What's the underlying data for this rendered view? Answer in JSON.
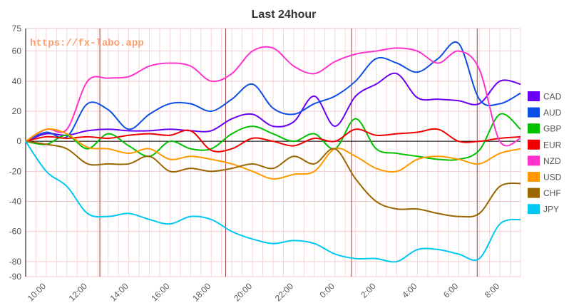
{
  "chart_data": {
    "type": "line",
    "title": "Last 24hour",
    "watermark": "https://fx-labo.app",
    "ylim": [
      -90,
      75
    ],
    "yticks": [
      75,
      60,
      40,
      20,
      0,
      -20,
      -40,
      -60,
      -80,
      -90
    ],
    "x_range": [
      0,
      24
    ],
    "xticks": [
      {
        "x": 1,
        "label": "10:00"
      },
      {
        "x": 3,
        "label": "12:00"
      },
      {
        "x": 5,
        "label": "14:00"
      },
      {
        "x": 7,
        "label": "16:00"
      },
      {
        "x": 9,
        "label": "18:00"
      },
      {
        "x": 11,
        "label": "20:00"
      },
      {
        "x": 13,
        "label": "22:00"
      },
      {
        "x": 15,
        "label": "0:00"
      },
      {
        "x": 17,
        "label": "2:00"
      },
      {
        "x": 19,
        "label": "4:00"
      },
      {
        "x": 21,
        "label": "6:00"
      },
      {
        "x": 23,
        "label": "8:00"
      }
    ],
    "day_markers": [
      3.6,
      9.7,
      15.8,
      21.9
    ],
    "legend_position": "right",
    "grid": true,
    "x": [
      0,
      1,
      2,
      3,
      4,
      5,
      6,
      7,
      8,
      9,
      10,
      11,
      12,
      13,
      14,
      15,
      16,
      17,
      18,
      19,
      20,
      21,
      22,
      23,
      24
    ],
    "series": [
      {
        "name": "CAD",
        "color": "#6a00f4",
        "values": [
          0,
          5,
          4,
          7,
          8,
          7,
          7,
          8,
          7,
          7,
          15,
          18,
          10,
          13,
          30,
          10,
          30,
          38,
          45,
          29,
          28,
          27,
          25,
          40,
          38
        ]
      },
      {
        "name": "AUD",
        "color": "#0d4ee6",
        "values": [
          0,
          6,
          3,
          25,
          21,
          8,
          18,
          25,
          25,
          20,
          28,
          38,
          22,
          18,
          25,
          30,
          40,
          55,
          52,
          46,
          55,
          65,
          28,
          25,
          32
        ]
      },
      {
        "name": "GBP",
        "color": "#00c000",
        "values": [
          0,
          -2,
          4,
          -5,
          5,
          -3,
          -10,
          0,
          -5,
          -5,
          5,
          10,
          5,
          0,
          5,
          -5,
          15,
          -5,
          -8,
          -10,
          -12,
          -12,
          -6,
          18,
          8
        ]
      },
      {
        "name": "EUR",
        "color": "#f00000",
        "values": [
          0,
          3,
          2,
          3,
          2,
          4,
          5,
          4,
          7,
          -6,
          -5,
          2,
          0,
          -3,
          2,
          0,
          8,
          4,
          5,
          6,
          8,
          0,
          0,
          2,
          3
        ]
      },
      {
        "name": "NZD",
        "color": "#ff33cc",
        "values": [
          0,
          8,
          8,
          40,
          42,
          43,
          50,
          52,
          50,
          40,
          45,
          60,
          62,
          50,
          45,
          53,
          58,
          60,
          62,
          60,
          52,
          60,
          48,
          0,
          2
        ]
      },
      {
        "name": "USD",
        "color": "#ff9900",
        "values": [
          0,
          8,
          5,
          -4,
          -5,
          -8,
          -5,
          -12,
          -10,
          -12,
          -15,
          -20,
          -25,
          -22,
          -20,
          -5,
          -10,
          -18,
          -20,
          -12,
          -10,
          -12,
          -15,
          -8,
          -5
        ]
      },
      {
        "name": "CHF",
        "color": "#996600",
        "values": [
          0,
          -2,
          -5,
          -15,
          -15,
          -15,
          -10,
          -20,
          -18,
          -20,
          -18,
          -15,
          -18,
          -10,
          -15,
          -5,
          -25,
          -40,
          -45,
          -45,
          -48,
          -50,
          -48,
          -30,
          -28
        ]
      },
      {
        "name": "JPY",
        "color": "#00c8f0",
        "values": [
          0,
          -20,
          -30,
          -48,
          -50,
          -48,
          -52,
          -55,
          -50,
          -52,
          -60,
          -65,
          -68,
          -66,
          -68,
          -75,
          -78,
          -78,
          -80,
          -72,
          -72,
          -75,
          -78,
          -55,
          -52
        ]
      }
    ]
  }
}
